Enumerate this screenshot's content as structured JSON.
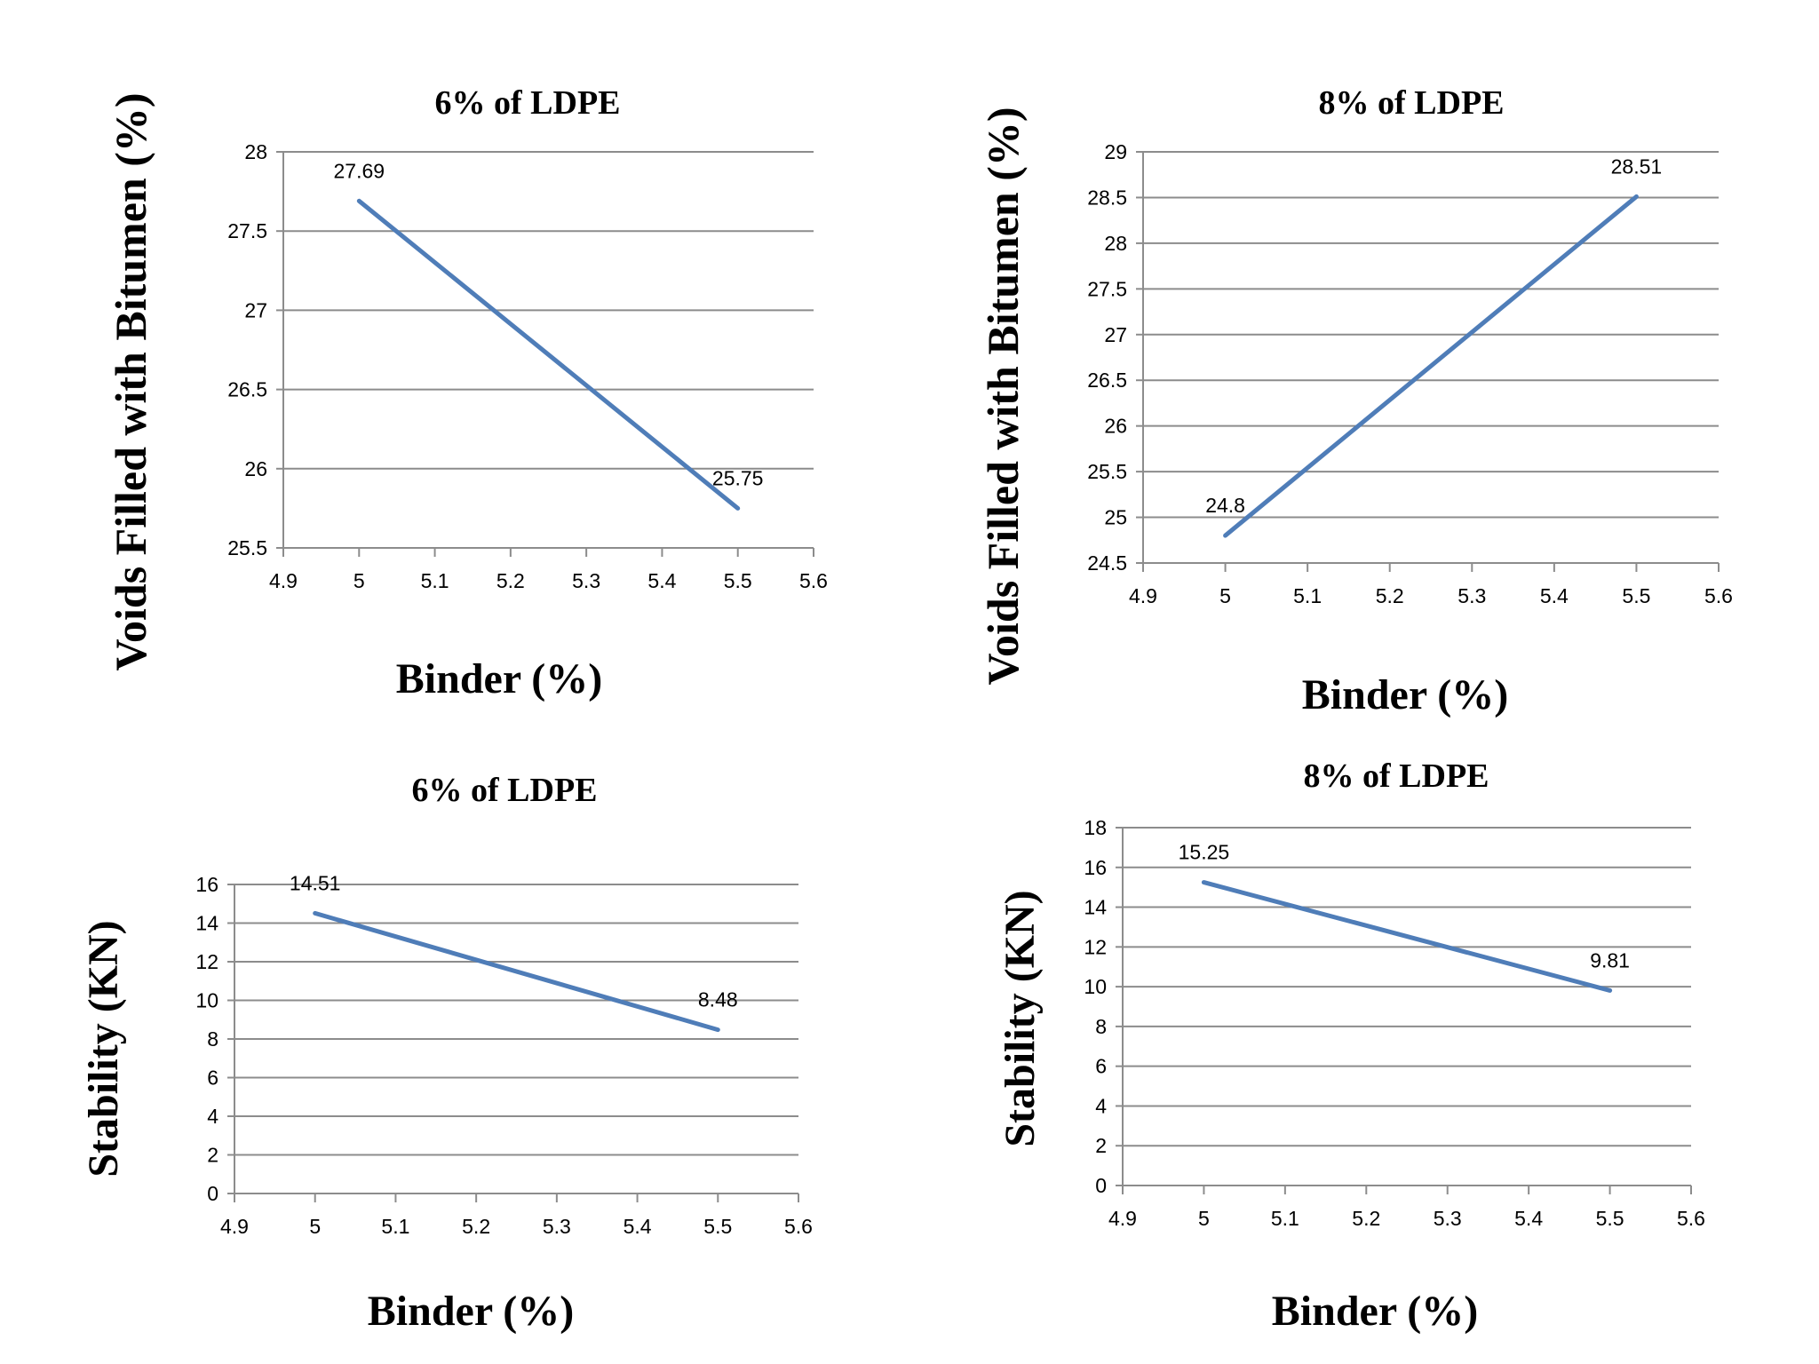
{
  "chart_data": [
    {
      "type": "line",
      "title": "6% of LDPE",
      "xlabel": "Binder (%)",
      "ylabel": "Voids Filled with Bitumen (%)",
      "xlim": [
        4.9,
        5.6
      ],
      "ylim": [
        25.5,
        28
      ],
      "xticks": [
        "4.9",
        "5",
        "5.1",
        "5.2",
        "5.3",
        "5.4",
        "5.5",
        "5.6"
      ],
      "yticks": [
        "25.5",
        "26",
        "26.5",
        "27",
        "27.5",
        "28"
      ],
      "grid": true,
      "line_color": "#4f7db8",
      "series": [
        {
          "x": [
            5,
            5.5
          ],
          "values": [
            27.69,
            25.75
          ],
          "labels": [
            "27.69",
            "25.75"
          ]
        }
      ]
    },
    {
      "type": "line",
      "title": "8% of LDPE",
      "xlabel": "Binder (%)",
      "ylabel": "Voids Filled with Bitumen (%)",
      "xlim": [
        4.9,
        5.6
      ],
      "ylim": [
        24.5,
        29
      ],
      "xticks": [
        "4.9",
        "5",
        "5.1",
        "5.2",
        "5.3",
        "5.4",
        "5.5",
        "5.6"
      ],
      "yticks": [
        "24.5",
        "25",
        "25.5",
        "26",
        "26.5",
        "27",
        "27.5",
        "28",
        "28.5",
        "29"
      ],
      "grid": true,
      "line_color": "#4f7db8",
      "series": [
        {
          "x": [
            5,
            5.5
          ],
          "values": [
            24.8,
            28.51
          ],
          "labels": [
            "24.8",
            "28.51"
          ]
        }
      ]
    },
    {
      "type": "line",
      "title": "6% of LDPE",
      "xlabel": "Binder (%)",
      "ylabel": "Stability (KN)",
      "xlim": [
        4.9,
        5.6
      ],
      "ylim": [
        0,
        16
      ],
      "xticks": [
        "4.9",
        "5",
        "5.1",
        "5.2",
        "5.3",
        "5.4",
        "5.5",
        "5.6"
      ],
      "yticks": [
        "0",
        "2",
        "4",
        "6",
        "8",
        "10",
        "12",
        "14",
        "16"
      ],
      "grid": true,
      "line_color": "#4f7db8",
      "series": [
        {
          "x": [
            5,
            5.5
          ],
          "values": [
            14.51,
            8.48
          ],
          "labels": [
            "14.51",
            "8.48"
          ]
        }
      ]
    },
    {
      "type": "line",
      "title": "8% of LDPE",
      "xlabel": "Binder (%)",
      "ylabel": "Stability (KN)",
      "xlim": [
        4.9,
        5.6
      ],
      "ylim": [
        0,
        18
      ],
      "xticks": [
        "4.9",
        "5",
        "5.1",
        "5.2",
        "5.3",
        "5.4",
        "5.5",
        "5.6"
      ],
      "yticks": [
        "0",
        "2",
        "4",
        "6",
        "8",
        "10",
        "12",
        "14",
        "16",
        "18"
      ],
      "grid": true,
      "line_color": "#4f7db8",
      "series": [
        {
          "x": [
            5,
            5.5
          ],
          "values": [
            15.25,
            9.81
          ],
          "labels": [
            "15.25",
            "9.81"
          ]
        }
      ]
    }
  ]
}
